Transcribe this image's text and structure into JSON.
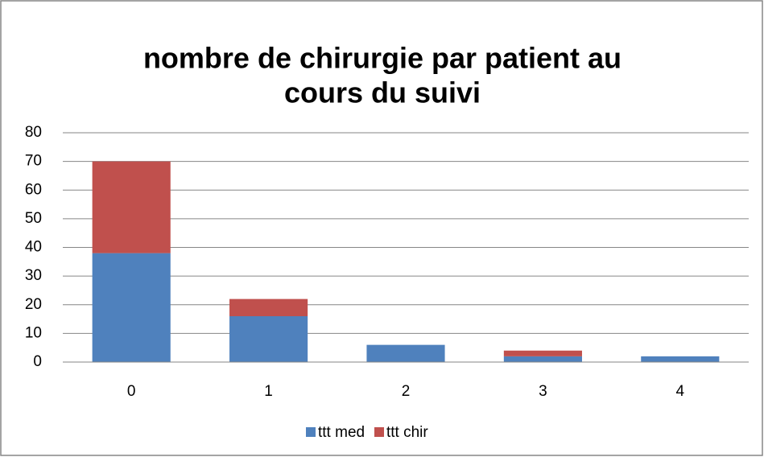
{
  "chart_data": {
    "type": "stacked_bar",
    "title": [
      "nombre de chirurgie par patient  au",
      "cours du suivi"
    ],
    "categories": [
      "0",
      "1",
      "2",
      "3",
      "4"
    ],
    "series": [
      {
        "name": "ttt med",
        "color": "#4f81bd",
        "values": [
          38,
          16,
          6,
          2,
          2
        ]
      },
      {
        "name": "ttt chir",
        "color": "#c0504d",
        "values": [
          32,
          6,
          0,
          2,
          0
        ]
      }
    ],
    "ylim": [
      0,
      80
    ],
    "yticks": [
      0,
      10,
      20,
      30,
      40,
      50,
      60,
      70,
      80
    ],
    "grid": true,
    "legend": "bottom"
  }
}
